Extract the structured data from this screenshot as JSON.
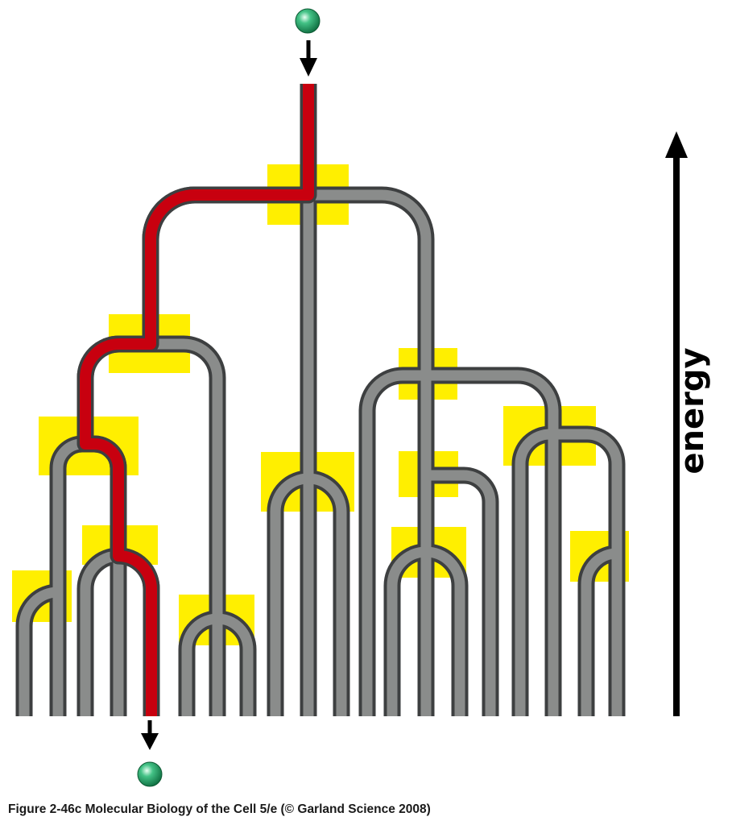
{
  "axis": {
    "label": "energy"
  },
  "caption": "Figure 2-46c  Molecular Biology of the Cell 5/e (© Garland Science 2008)",
  "colors": {
    "tube_fill": "#8a8c8b",
    "tube_outline": "#3d3f40",
    "highlight_path": "#c8000f",
    "branch_point_marker": "#ffef00",
    "ball": "#1e9a5e",
    "arrow": "#000000"
  }
}
